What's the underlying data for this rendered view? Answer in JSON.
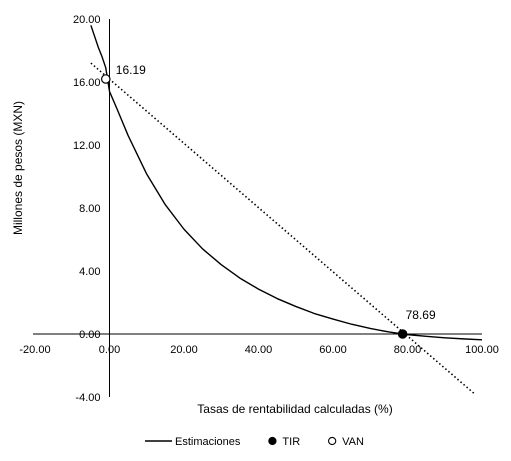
{
  "chart_data": {
    "type": "line",
    "xlabel": "Tasas de rentabilidad calculadas (%)",
    "ylabel": "Millones de pesos (MXN)",
    "xlim": [
      -20,
      100
    ],
    "ylim": [
      -4,
      20
    ],
    "x_ticks": [
      "-20.00",
      "0.00",
      "20.00",
      "40.00",
      "60.00",
      "80.00",
      "100.00"
    ],
    "y_ticks": [
      "-4.00",
      "0.00",
      "4.00",
      "8.00",
      "12.00",
      "16.00",
      "20.00"
    ],
    "grid": false,
    "legend_position": "bottom",
    "series": [
      {
        "name": "Estimaciones",
        "style": "solid",
        "color": "#000000",
        "x": [
          -5,
          -4,
          -3,
          -2,
          -1,
          0,
          2,
          5,
          10,
          15,
          20,
          25,
          30,
          35,
          40,
          45,
          50,
          55,
          60,
          65,
          70,
          75,
          78.69,
          80,
          85,
          90,
          95,
          100
        ],
        "y": [
          19.6,
          18.9,
          18.2,
          17.6,
          16.9,
          15.4,
          14.3,
          12.6,
          10.15,
          8.2,
          6.65,
          5.4,
          4.4,
          3.55,
          2.85,
          2.25,
          1.75,
          1.3,
          0.95,
          0.62,
          0.35,
          0.13,
          0.0,
          -0.04,
          -0.15,
          -0.24,
          -0.31,
          -0.37
        ]
      },
      {
        "name": "",
        "style": "dotted",
        "color": "#000000",
        "x": [
          -5,
          98
        ],
        "y": [
          17.2,
          -3.8
        ]
      }
    ],
    "points": [
      {
        "name": "TIR",
        "x": 78.69,
        "y": 0.0,
        "label": "78.69",
        "marker": "filled"
      },
      {
        "name": "VAN",
        "x": -1,
        "y": 16.19,
        "label": "16.19",
        "marker": "hollow"
      }
    ],
    "legend": [
      {
        "label": "Estimaciones",
        "marker": "line"
      },
      {
        "label": "TIR",
        "marker": "filled-circle"
      },
      {
        "label": "VAN",
        "marker": "hollow-circle"
      }
    ]
  }
}
